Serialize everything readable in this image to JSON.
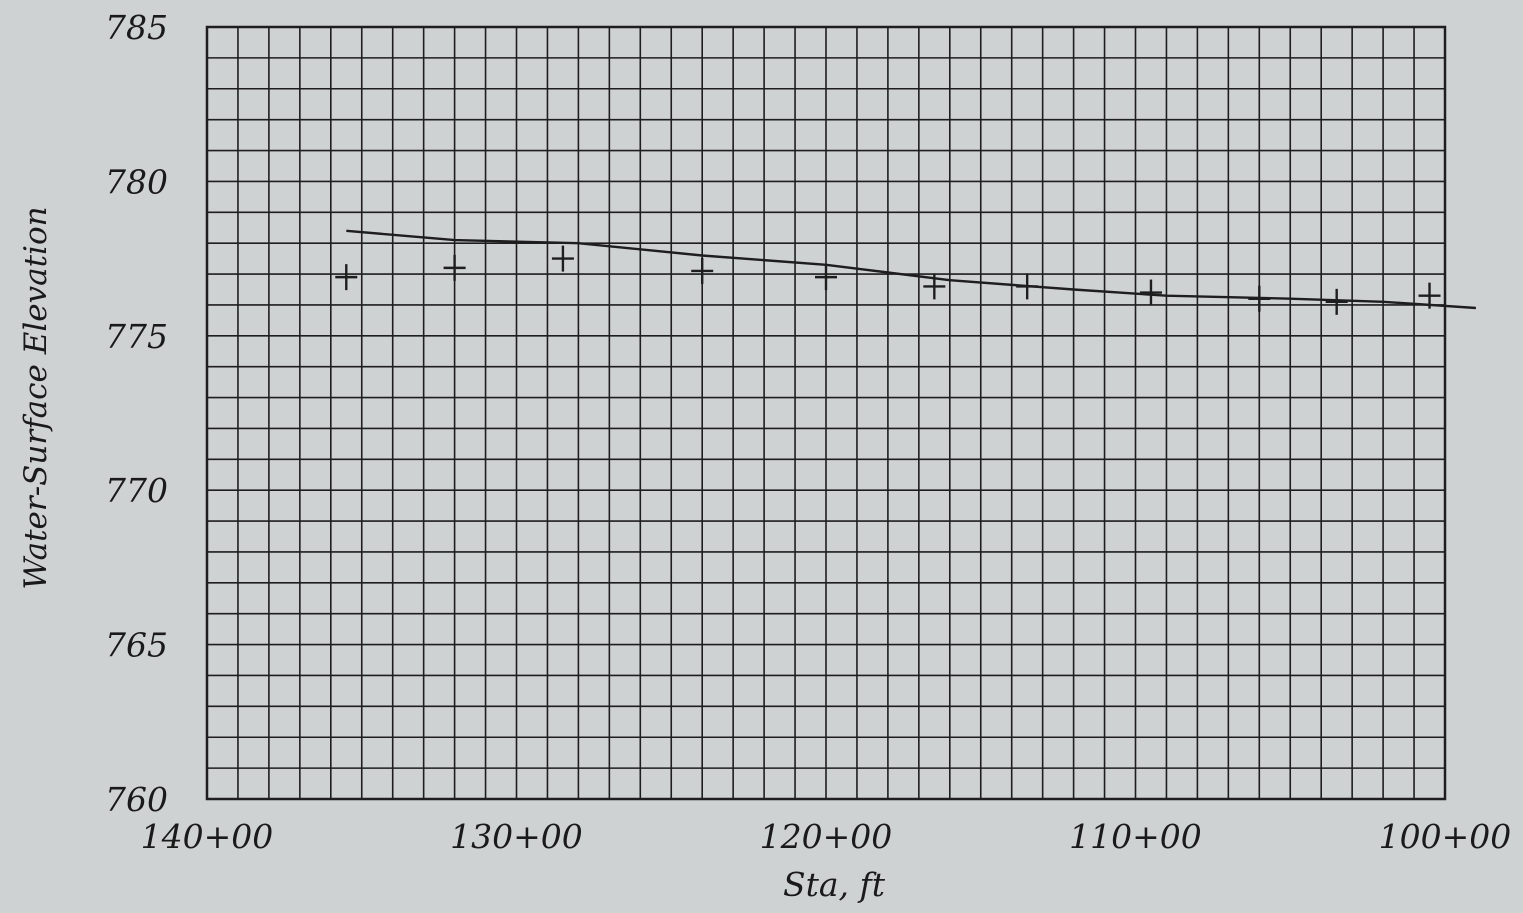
{
  "chart_data": {
    "type": "line",
    "xlabel": "Sta, ft",
    "ylabel": "Water-Surface Elevation",
    "x_unit": "ft",
    "x_reversed": true,
    "xlim": [
      14000,
      10000
    ],
    "ylim": [
      760,
      785
    ],
    "x_ticks": [
      {
        "value": 14000,
        "label": "140+00"
      },
      {
        "value": 13000,
        "label": "130+00"
      },
      {
        "value": 12000,
        "label": "120+00"
      },
      {
        "value": 11000,
        "label": "110+00"
      },
      {
        "value": 10000,
        "label": "100+00"
      }
    ],
    "y_ticks": [
      {
        "value": 785,
        "label": "785"
      },
      {
        "value": 780,
        "label": "780"
      },
      {
        "value": 775,
        "label": "775"
      },
      {
        "value": 770,
        "label": "770"
      },
      {
        "value": 765,
        "label": "765"
      },
      {
        "value": 760,
        "label": "760"
      }
    ],
    "grid": true,
    "grid_minor_x_step": 100,
    "grid_minor_y_step": 1,
    "legend": "none",
    "series": [
      {
        "kind": "line",
        "x": [
          13550,
          13200,
          12800,
          12400,
          12000,
          11600,
          11200,
          10900,
          10500,
          10200,
          9900
        ],
        "y": [
          778.4,
          778.1,
          778.0,
          777.6,
          777.3,
          776.8,
          776.5,
          776.3,
          776.2,
          776.1,
          775.9
        ]
      },
      {
        "kind": "markers",
        "x": [
          13550,
          13200,
          12850,
          12400,
          12000,
          11650,
          11350,
          10950,
          10600,
          10350,
          10050
        ],
        "y": [
          776.9,
          777.2,
          777.5,
          777.1,
          776.9,
          776.6,
          776.6,
          776.4,
          776.2,
          776.1,
          776.3
        ]
      }
    ],
    "colors": {
      "background": "#cfd2d3",
      "grid": "#1e1e1e",
      "line": "#1e1e1e"
    }
  }
}
